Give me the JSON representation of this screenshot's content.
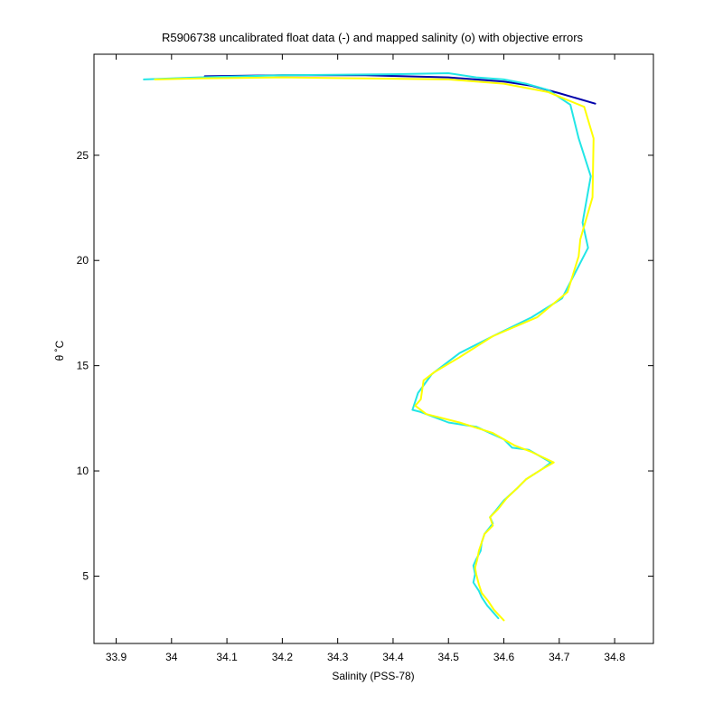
{
  "chart_data": {
    "type": "line",
    "title": "R5906738 uncalibrated float data (-) and mapped salinity (o) with objective errors",
    "xlabel": "Salinity (PSS-78)",
    "ylabel": "θ ˚C",
    "xlim": [
      33.86,
      34.87
    ],
    "ylim": [
      1.8,
      29.8
    ],
    "xticks": [
      33.9,
      34.0,
      34.1,
      34.2,
      34.3,
      34.4,
      34.5,
      34.6,
      34.7,
      34.8
    ],
    "xtick_labels": [
      "33.9",
      "34",
      "34.1",
      "34.2",
      "34.3",
      "34.4",
      "34.5",
      "34.6",
      "34.7",
      "34.8"
    ],
    "yticks": [
      5,
      10,
      15,
      20,
      25
    ],
    "ytick_labels": [
      "5",
      "10",
      "15",
      "20",
      "25"
    ],
    "grid": false,
    "series": [
      {
        "color": "#0000aa",
        "x": [
          34.06,
          34.2,
          34.35,
          34.5,
          34.6,
          34.65,
          34.7,
          34.765
        ],
        "y": [
          28.75,
          28.8,
          28.8,
          28.7,
          28.5,
          28.3,
          27.95,
          27.45
        ]
      },
      {
        "color": "#22e6e6",
        "x": [
          33.95,
          34.05,
          34.2,
          34.4,
          34.5,
          34.55,
          34.6,
          34.64,
          34.68,
          34.72,
          34.735,
          34.757,
          34.742,
          34.752,
          34.705,
          34.65,
          34.58,
          34.52,
          34.47,
          34.445,
          34.435,
          34.45,
          34.5,
          34.55,
          34.6,
          34.615,
          34.645,
          34.685,
          34.67,
          34.64,
          34.625,
          34.6,
          34.585,
          34.575,
          34.58,
          34.565,
          34.56,
          34.558,
          34.55,
          34.545,
          34.548,
          34.545,
          34.555,
          34.56,
          34.57,
          34.58,
          34.59
        ],
        "y": [
          28.6,
          28.7,
          28.8,
          28.85,
          28.9,
          28.7,
          28.6,
          28.4,
          28.1,
          27.4,
          25.8,
          24.0,
          21.8,
          20.6,
          18.2,
          17.3,
          16.4,
          15.6,
          14.6,
          13.7,
          12.9,
          12.8,
          12.3,
          12.1,
          11.5,
          11.1,
          11.0,
          10.4,
          10.1,
          9.6,
          9.2,
          8.6,
          8.1,
          7.8,
          7.5,
          7.0,
          6.6,
          6.2,
          5.8,
          5.5,
          5.1,
          4.7,
          4.3,
          4.0,
          3.6,
          3.3,
          3.0
        ]
      },
      {
        "color": "#ffff00",
        "x": [
          33.97,
          34.05,
          34.2,
          34.35,
          34.5,
          34.6,
          34.68,
          34.745,
          34.762,
          34.76,
          34.738,
          34.735,
          34.715,
          34.66,
          34.58,
          34.52,
          34.475,
          34.455,
          34.45,
          34.44,
          34.46,
          34.52,
          34.58,
          34.62,
          34.65,
          34.69,
          34.67,
          34.64,
          34.625,
          34.605,
          34.59,
          34.575,
          34.58,
          34.565,
          34.56,
          34.555,
          34.552,
          34.548,
          34.55,
          34.555,
          34.56,
          34.572,
          34.582,
          34.6
        ],
        "y": [
          28.6,
          28.65,
          28.7,
          28.65,
          28.6,
          28.4,
          28.0,
          27.3,
          25.8,
          23.0,
          21.0,
          20.2,
          18.5,
          17.3,
          16.4,
          15.4,
          14.7,
          14.3,
          13.4,
          13.1,
          12.7,
          12.3,
          11.8,
          11.2,
          10.9,
          10.4,
          10.1,
          9.6,
          9.2,
          8.7,
          8.2,
          7.8,
          7.4,
          7.0,
          6.6,
          6.2,
          5.8,
          5.4,
          5.1,
          4.6,
          4.2,
          3.8,
          3.4,
          2.9
        ]
      }
    ]
  }
}
